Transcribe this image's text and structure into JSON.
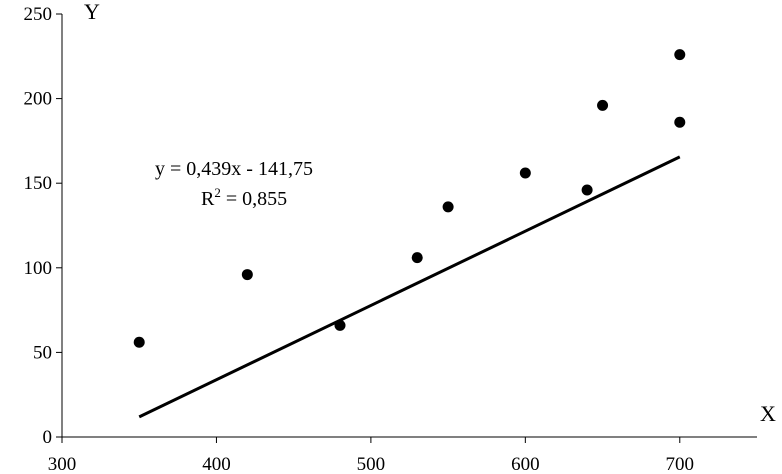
{
  "chart_data": {
    "type": "scatter",
    "title": "",
    "xlabel": "X",
    "ylabel": "Y",
    "xlim": [
      300,
      750
    ],
    "ylim": [
      0,
      250
    ],
    "x_ticks": [
      300,
      400,
      500,
      600,
      700
    ],
    "y_ticks": [
      0,
      50,
      100,
      150,
      200,
      250
    ],
    "x_tick_labels": [
      "300",
      "400",
      "500",
      "600",
      "700"
    ],
    "y_tick_labels": [
      "0",
      "50",
      "100",
      "150",
      "200",
      "250"
    ],
    "grid": false,
    "series": [
      {
        "points": [
          {
            "x": 350,
            "y": 56
          },
          {
            "x": 420,
            "y": 96
          },
          {
            "x": 480,
            "y": 66
          },
          {
            "x": 530,
            "y": 106
          },
          {
            "x": 550,
            "y": 136
          },
          {
            "x": 600,
            "y": 156
          },
          {
            "x": 640,
            "y": 146
          },
          {
            "x": 650,
            "y": 196
          },
          {
            "x": 700,
            "y": 226
          },
          {
            "x": 700,
            "y": 186
          }
        ],
        "color": "#000000"
      }
    ],
    "trendline": {
      "slope": 0.439,
      "intercept": -141.75,
      "x_range": [
        350,
        700
      ],
      "color": "#000000"
    },
    "annotations": {
      "equation": "y = 0,439x - 141,75",
      "r2_prefix": "R",
      "r2_sup": "2",
      "r2_value": " = 0,855"
    }
  }
}
